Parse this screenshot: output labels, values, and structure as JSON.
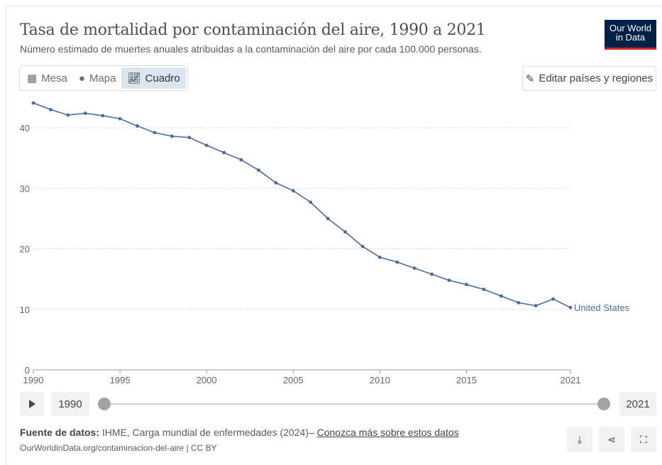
{
  "header": {
    "title": "Tasa de mortalidad por contaminación del aire, 1990 a 2021",
    "subtitle": "Número estimado de muertes anuales atribuidas a la contaminación del aire por cada 100.000 personas.",
    "logo": "Our World in Data"
  },
  "tabs": [
    {
      "label": "Mesa",
      "icon": "table-icon"
    },
    {
      "label": "Mapa",
      "icon": "globe-icon"
    },
    {
      "label": "Cuadro",
      "icon": "line-chart-icon",
      "active": true
    }
  ],
  "edit_label": "Editar países y regiones",
  "timeline": {
    "start": "1990",
    "end": "2021"
  },
  "footer": {
    "source_label": "Fuente de datos:",
    "source_text": " IHME, Carga mundial de enfermedades (2024)– ",
    "learn_more": "Conozca más sobre estos datos",
    "url": "OurWorldinData.org/contaminacion-del-aire | CC BY"
  },
  "chart_data": {
    "type": "line",
    "title": "Tasa de mortalidad por contaminación del aire, 1990 a 2021",
    "x": [
      1990,
      1991,
      1992,
      1993,
      1994,
      1995,
      1996,
      1997,
      1998,
      1999,
      2000,
      2001,
      2002,
      2003,
      2004,
      2005,
      2006,
      2007,
      2008,
      2009,
      2010,
      2011,
      2012,
      2013,
      2014,
      2015,
      2016,
      2017,
      2018,
      2019,
      2020,
      2021
    ],
    "series": [
      {
        "name": "United States",
        "color": "#4c6a9c",
        "values": [
          44.1,
          43.0,
          42.1,
          42.4,
          42.0,
          41.5,
          40.3,
          39.2,
          38.6,
          38.4,
          37.1,
          35.9,
          34.7,
          33.0,
          30.9,
          29.6,
          27.7,
          25.0,
          22.8,
          20.4,
          18.6,
          17.8,
          16.8,
          15.8,
          14.8,
          14.1,
          13.3,
          12.2,
          11.1,
          10.6,
          11.7,
          10.3
        ]
      }
    ],
    "xlim": [
      1990,
      2021
    ],
    "ylim": [
      0,
      45
    ],
    "xticks": [
      "1990",
      "1995",
      "2000",
      "2005",
      "2010",
      "2015",
      "2021"
    ],
    "yticks": [
      "0",
      "10",
      "20",
      "30",
      "40"
    ],
    "grid": "horizontal dotted"
  }
}
